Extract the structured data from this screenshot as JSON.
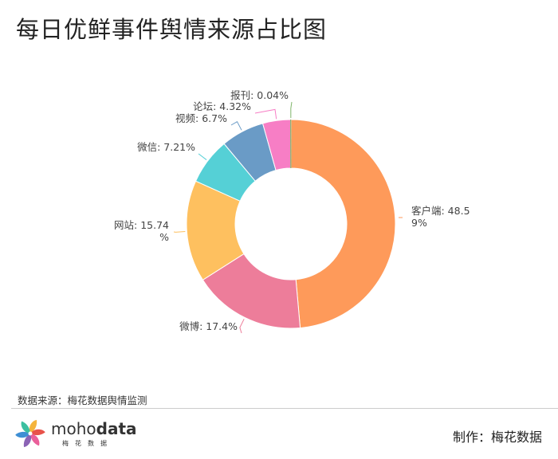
{
  "title": "每日优鲜事件舆情来源占比图",
  "source_label": "数据来源：梅花数据舆情监测",
  "maker_label": "制作：梅花数据",
  "brand": {
    "part1": "moho",
    "part2": "data",
    "sub": "梅花数据"
  },
  "colors": {
    "客户端": "#fe9a5a",
    "微博": "#ed7d9a",
    "网站": "#fec05f",
    "微信": "#55d0d6",
    "视频": "#6a9bc6",
    "论坛": "#f77ec5",
    "报刊": "#7fb56a"
  },
  "chart_data": {
    "type": "pie",
    "variant": "donut",
    "title": "每日优鲜事件舆情来源占比图",
    "slices": [
      {
        "name": "客户端",
        "value": 48.59,
        "label_lines": [
          "客户端: 48.5",
          "9%"
        ]
      },
      {
        "name": "微博",
        "value": 17.4,
        "label_lines": [
          "微博: 17.4%"
        ]
      },
      {
        "name": "网站",
        "value": 15.74,
        "label_lines": [
          "网站: 15.74",
          "%"
        ]
      },
      {
        "name": "微信",
        "value": 7.21,
        "label_lines": [
          "微信: 7.21%"
        ]
      },
      {
        "name": "视频",
        "value": 6.7,
        "label_lines": [
          "视频: 6.7%"
        ]
      },
      {
        "name": "论坛",
        "value": 4.32,
        "label_lines": [
          "论坛: 4.32%"
        ]
      },
      {
        "name": "报刊",
        "value": 0.04,
        "label_lines": [
          "报刊: 0.04%"
        ]
      }
    ]
  }
}
